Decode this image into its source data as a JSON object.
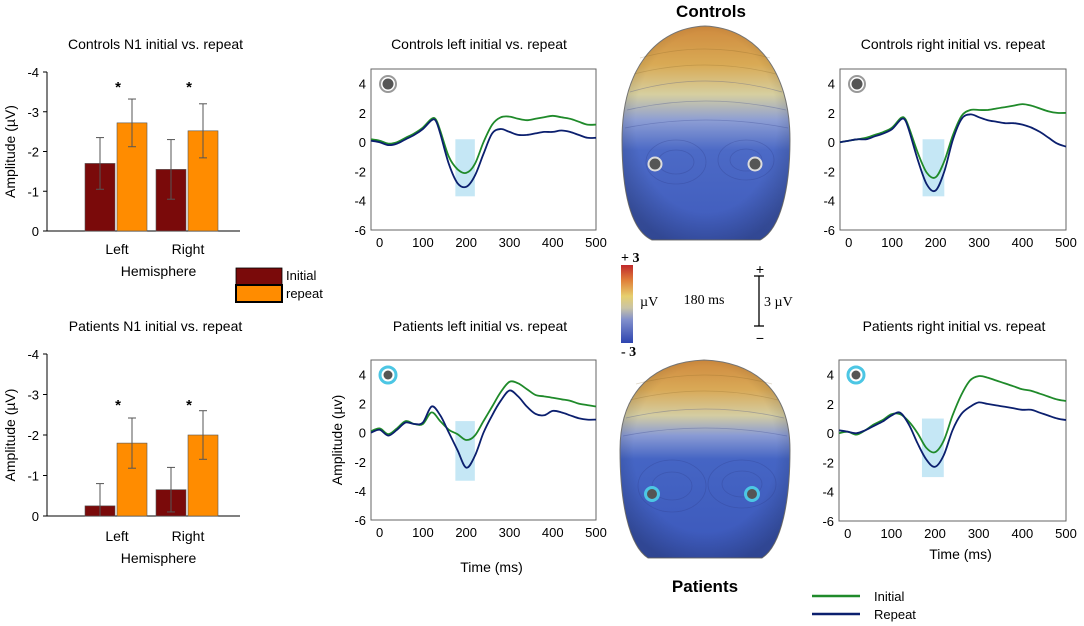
{
  "figure": {
    "headings": {
      "controls": "Controls",
      "patients": "Patients"
    },
    "colors": {
      "initial_bar": "#7a0a0a",
      "repeat_bar": "#ff8c00",
      "initial_line": "#1f8a2a",
      "repeat_line": "#0b1f6e",
      "window": "#bfe4f4",
      "controls_electrode": "#555555",
      "patients_electrode": "#4cc6e4"
    },
    "bar_legend": {
      "initial": "Initial",
      "repeat": "repeat"
    },
    "line_legend": {
      "initial": "Initial",
      "repeat": "Repeat"
    },
    "scale": {
      "colorbar_top": "+ 3",
      "colorbar_bottom": "- 3",
      "colorbar_unit": "µV",
      "time_label": "180 ms",
      "bar_plus": "+",
      "bar_minus": "−",
      "amplitude_label": "3 µV"
    }
  },
  "chart_data": [
    {
      "id": "controls_n1",
      "type": "bar",
      "title": "Controls N1 initial vs. repeat",
      "xlabel": "Hemisphere",
      "ylabel": "Amplitude (µV)",
      "categories": [
        "Left",
        "Right"
      ],
      "ylim": [
        0,
        -4
      ],
      "yticks": [
        0,
        -1,
        -2,
        -3,
        -4
      ],
      "series": [
        {
          "name": "Initial",
          "values": [
            -1.7,
            -1.55
          ],
          "errors": [
            0.65,
            0.75
          ]
        },
        {
          "name": "repeat",
          "values": [
            -2.72,
            -2.52
          ],
          "errors": [
            0.6,
            0.68
          ]
        }
      ],
      "significance": [
        "*",
        "*"
      ]
    },
    {
      "id": "patients_n1",
      "type": "bar",
      "title": "Patients N1 initial vs. repeat",
      "xlabel": "Hemisphere",
      "ylabel": "Amplitude (µV)",
      "categories": [
        "Left",
        "Right"
      ],
      "ylim": [
        0,
        -4
      ],
      "yticks": [
        0,
        -1,
        -2,
        -3,
        -4
      ],
      "series": [
        {
          "name": "Initial",
          "values": [
            -0.25,
            -0.65
          ],
          "errors": [
            0.55,
            0.55
          ]
        },
        {
          "name": "repeat",
          "values": [
            -1.8,
            -2.0
          ],
          "errors": [
            0.62,
            0.6
          ]
        }
      ],
      "significance": [
        "*",
        "*"
      ]
    },
    {
      "id": "controls_left",
      "type": "line",
      "title": "Controls left initial vs. repeat",
      "xlabel": "",
      "ylabel": "",
      "xlim": [
        -20,
        500
      ],
      "ylim": [
        -6,
        5
      ],
      "xticks": [
        0,
        100,
        200,
        300,
        400,
        500
      ],
      "yticks": [
        4,
        2,
        0,
        -2,
        -4,
        -6
      ],
      "window": [
        175,
        220,
        -3.7,
        0.2
      ],
      "x": [
        -20,
        0,
        20,
        40,
        60,
        80,
        100,
        120,
        130,
        140,
        160,
        180,
        200,
        220,
        240,
        260,
        280,
        300,
        320,
        340,
        360,
        380,
        400,
        420,
        440,
        460,
        480,
        500
      ],
      "series": [
        {
          "name": "Initial",
          "values": [
            0.2,
            0.1,
            -0.1,
            0.0,
            0.3,
            0.6,
            1.0,
            1.6,
            1.55,
            0.8,
            -1.0,
            -1.85,
            -2.1,
            -1.5,
            0.0,
            1.2,
            1.7,
            1.75,
            1.6,
            1.5,
            1.6,
            1.7,
            1.8,
            1.7,
            1.6,
            1.4,
            1.2,
            1.2
          ]
        },
        {
          "name": "Repeat",
          "values": [
            0.1,
            0.0,
            -0.2,
            -0.1,
            0.2,
            0.5,
            0.9,
            1.5,
            1.45,
            0.6,
            -1.5,
            -2.8,
            -3.05,
            -2.3,
            -0.8,
            0.6,
            0.9,
            0.7,
            0.5,
            0.5,
            0.6,
            0.7,
            0.7,
            0.8,
            0.7,
            0.5,
            0.3,
            0.3
          ]
        }
      ]
    },
    {
      "id": "controls_right",
      "type": "line",
      "title": "Controls right initial vs. repeat",
      "xlabel": "",
      "ylabel": "",
      "xlim": [
        -20,
        500
      ],
      "ylim": [
        -6,
        5
      ],
      "xticks": [
        0,
        100,
        200,
        300,
        400,
        500
      ],
      "yticks": [
        4,
        2,
        0,
        -2,
        -4,
        -6
      ],
      "window": [
        170,
        220,
        -3.7,
        0.2
      ],
      "x": [
        -20,
        0,
        20,
        40,
        60,
        80,
        100,
        120,
        130,
        140,
        160,
        180,
        200,
        220,
        240,
        260,
        280,
        300,
        320,
        340,
        360,
        380,
        400,
        420,
        440,
        460,
        480,
        500
      ],
      "series": [
        {
          "name": "Initial",
          "values": [
            0.0,
            0.1,
            0.2,
            0.3,
            0.5,
            0.7,
            1.0,
            1.65,
            1.6,
            0.9,
            -0.8,
            -2.1,
            -2.4,
            -1.3,
            0.5,
            1.8,
            2.2,
            2.2,
            2.2,
            2.3,
            2.4,
            2.5,
            2.6,
            2.5,
            2.3,
            2.1,
            2.0,
            2.0
          ]
        },
        {
          "name": "Repeat",
          "values": [
            0.0,
            0.1,
            0.2,
            0.2,
            0.4,
            0.6,
            0.9,
            1.55,
            1.5,
            0.7,
            -1.3,
            -2.9,
            -3.3,
            -2.0,
            0.2,
            1.6,
            1.9,
            1.7,
            1.5,
            1.4,
            1.3,
            1.3,
            1.2,
            1.0,
            0.7,
            0.3,
            -0.1,
            -0.3
          ]
        }
      ]
    },
    {
      "id": "patients_left",
      "type": "line",
      "title": "Patients left initial vs. repeat",
      "xlabel": "Time (ms)",
      "ylabel": "Amplitude (µv)",
      "xlim": [
        -20,
        500
      ],
      "ylim": [
        -6,
        5
      ],
      "xticks": [
        0,
        100,
        200,
        300,
        400,
        500
      ],
      "yticks": [
        4,
        2,
        0,
        -2,
        -4,
        -6
      ],
      "window": [
        175,
        220,
        -3.3,
        0.8
      ],
      "x": [
        -20,
        0,
        20,
        40,
        60,
        80,
        100,
        120,
        140,
        160,
        180,
        200,
        220,
        240,
        260,
        280,
        300,
        320,
        340,
        360,
        380,
        400,
        420,
        440,
        460,
        480,
        500
      ],
      "series": [
        {
          "name": "Initial",
          "values": [
            0.1,
            0.3,
            -0.1,
            0.3,
            0.8,
            0.6,
            0.6,
            1.4,
            0.8,
            0.2,
            -0.1,
            -0.5,
            -0.2,
            0.8,
            1.8,
            2.8,
            3.5,
            3.4,
            3.0,
            2.6,
            2.5,
            2.4,
            2.3,
            2.2,
            2.0,
            1.9,
            1.8
          ]
        },
        {
          "name": "Repeat",
          "values": [
            0.0,
            0.2,
            -0.2,
            0.2,
            0.7,
            0.6,
            0.7,
            1.8,
            1.2,
            0.0,
            -1.2,
            -2.4,
            -1.6,
            0.0,
            1.2,
            2.2,
            2.9,
            2.5,
            1.8,
            1.3,
            1.2,
            1.5,
            1.4,
            1.2,
            1.0,
            0.9,
            0.9
          ]
        }
      ]
    },
    {
      "id": "patients_right",
      "type": "line",
      "title": "Patients right initial vs. repeat",
      "xlabel": "Time (ms)",
      "ylabel": "",
      "xlim": [
        -20,
        500
      ],
      "ylim": [
        -6,
        5
      ],
      "xticks": [
        0,
        100,
        200,
        300,
        400,
        500
      ],
      "yticks": [
        4,
        2,
        0,
        -2,
        -4,
        -6
      ],
      "window": [
        170,
        220,
        -3.0,
        1.0
      ],
      "x": [
        -20,
        0,
        20,
        40,
        60,
        80,
        100,
        120,
        140,
        160,
        180,
        200,
        220,
        240,
        260,
        280,
        300,
        320,
        340,
        360,
        380,
        400,
        420,
        440,
        460,
        480,
        500
      ],
      "series": [
        {
          "name": "Initial",
          "values": [
            0.0,
            0.1,
            -0.1,
            0.2,
            0.6,
            0.9,
            1.3,
            1.3,
            0.8,
            0.0,
            -1.0,
            -1.3,
            -0.5,
            1.2,
            2.6,
            3.6,
            3.9,
            3.8,
            3.6,
            3.4,
            3.2,
            3.0,
            2.9,
            2.7,
            2.5,
            2.3,
            2.2
          ]
        },
        {
          "name": "Repeat",
          "values": [
            0.2,
            0.1,
            0.0,
            0.2,
            0.5,
            0.8,
            1.2,
            1.4,
            0.6,
            -0.7,
            -1.8,
            -2.3,
            -1.5,
            0.2,
            1.3,
            1.8,
            2.1,
            2.0,
            1.9,
            1.8,
            1.7,
            1.6,
            1.6,
            1.4,
            1.2,
            1.0,
            0.9
          ]
        }
      ]
    }
  ]
}
